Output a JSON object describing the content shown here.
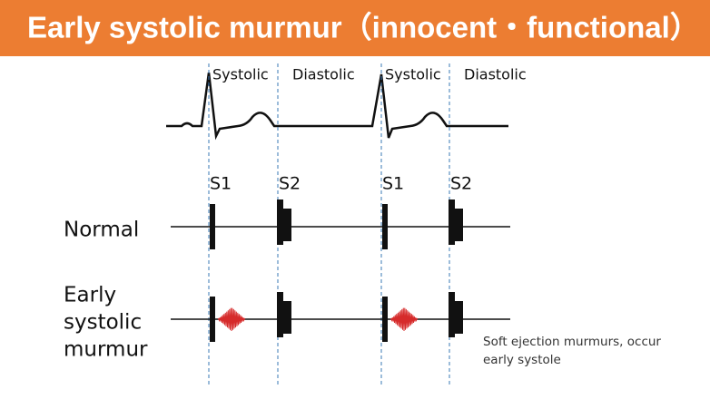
{
  "title": "Early systolic murmur（innocent・functional）",
  "phases": [
    "Systolic",
    "Diastolic",
    "Systolic",
    "Diastolic"
  ],
  "sounds": [
    "S1",
    "S2",
    "S1",
    "S2"
  ],
  "rows": [
    {
      "label": [
        "Normal"
      ]
    },
    {
      "label": [
        "Early",
        "systolic",
        "murmur"
      ]
    }
  ],
  "note": [
    "Soft ejection murmurs, occur",
    "early systole"
  ]
}
